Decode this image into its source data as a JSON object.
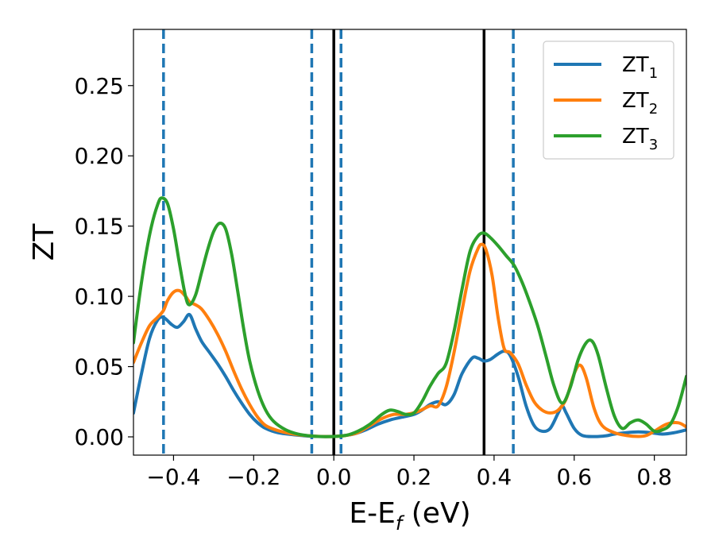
{
  "chart_data": {
    "type": "line",
    "xlabel": {
      "main": "E-E",
      "sub": "f",
      "unit": " (eV)"
    },
    "ylabel": "ZT",
    "xlim": [
      -0.5,
      0.88
    ],
    "ylim": [
      -0.013,
      0.29
    ],
    "xticks": [
      {
        "value": -0.4,
        "label": "−0.4"
      },
      {
        "value": -0.2,
        "label": "−0.2"
      },
      {
        "value": 0.0,
        "label": "0.0"
      },
      {
        "value": 0.2,
        "label": "0.2"
      },
      {
        "value": 0.4,
        "label": "0.4"
      },
      {
        "value": 0.6,
        "label": "0.6"
      },
      {
        "value": 0.8,
        "label": "0.8"
      }
    ],
    "yticks": [
      {
        "value": 0.0,
        "label": "0.00"
      },
      {
        "value": 0.05,
        "label": "0.05"
      },
      {
        "value": 0.1,
        "label": "0.10"
      },
      {
        "value": 0.15,
        "label": "0.15"
      },
      {
        "value": 0.2,
        "label": "0.20"
      },
      {
        "value": 0.25,
        "label": "0.25"
      }
    ],
    "grid": false,
    "legend_position": "top-right",
    "vlines_solid": [
      0.0,
      0.375
    ],
    "vlines_dashed": [
      -0.425,
      -0.055,
      0.018,
      0.448
    ],
    "series": [
      {
        "name": "ZT",
        "sub": "1",
        "color": "#1f77b4",
        "points": [
          [
            -0.5,
            0.017
          ],
          [
            -0.48,
            0.045
          ],
          [
            -0.46,
            0.07
          ],
          [
            -0.44,
            0.083
          ],
          [
            -0.425,
            0.085
          ],
          [
            -0.405,
            0.08
          ],
          [
            -0.39,
            0.078
          ],
          [
            -0.375,
            0.082
          ],
          [
            -0.36,
            0.087
          ],
          [
            -0.345,
            0.077
          ],
          [
            -0.33,
            0.068
          ],
          [
            -0.31,
            0.06
          ],
          [
            -0.29,
            0.052
          ],
          [
            -0.27,
            0.043
          ],
          [
            -0.25,
            0.033
          ],
          [
            -0.23,
            0.024
          ],
          [
            -0.21,
            0.016
          ],
          [
            -0.19,
            0.01
          ],
          [
            -0.17,
            0.006
          ],
          [
            -0.14,
            0.003
          ],
          [
            -0.1,
            0.0015
          ],
          [
            -0.06,
            0.0005
          ],
          [
            -0.02,
            0.0002
          ],
          [
            0.0,
            0.0003
          ],
          [
            0.02,
            0.0008
          ],
          [
            0.05,
            0.002
          ],
          [
            0.08,
            0.005
          ],
          [
            0.11,
            0.009
          ],
          [
            0.14,
            0.012
          ],
          [
            0.17,
            0.014
          ],
          [
            0.2,
            0.016
          ],
          [
            0.22,
            0.019
          ],
          [
            0.24,
            0.023
          ],
          [
            0.26,
            0.025
          ],
          [
            0.28,
            0.023
          ],
          [
            0.3,
            0.03
          ],
          [
            0.32,
            0.045
          ],
          [
            0.345,
            0.056
          ],
          [
            0.36,
            0.056
          ],
          [
            0.375,
            0.054
          ],
          [
            0.39,
            0.055
          ],
          [
            0.41,
            0.059
          ],
          [
            0.425,
            0.061
          ],
          [
            0.44,
            0.058
          ],
          [
            0.46,
            0.043
          ],
          [
            0.48,
            0.022
          ],
          [
            0.5,
            0.008
          ],
          [
            0.52,
            0.004
          ],
          [
            0.54,
            0.006
          ],
          [
            0.56,
            0.017
          ],
          [
            0.57,
            0.022
          ],
          [
            0.58,
            0.017
          ],
          [
            0.6,
            0.006
          ],
          [
            0.62,
            0.001
          ],
          [
            0.65,
            0.0002
          ],
          [
            0.68,
            0.0008
          ],
          [
            0.7,
            0.002
          ],
          [
            0.73,
            0.003
          ],
          [
            0.76,
            0.0035
          ],
          [
            0.79,
            0.003
          ],
          [
            0.82,
            0.002
          ],
          [
            0.85,
            0.003
          ],
          [
            0.88,
            0.005
          ]
        ]
      },
      {
        "name": "ZT",
        "sub": "2",
        "color": "#ff7f0e",
        "points": [
          [
            -0.5,
            0.053
          ],
          [
            -0.48,
            0.067
          ],
          [
            -0.46,
            0.079
          ],
          [
            -0.44,
            0.085
          ],
          [
            -0.425,
            0.09
          ],
          [
            -0.415,
            0.097
          ],
          [
            -0.4,
            0.103
          ],
          [
            -0.385,
            0.104
          ],
          [
            -0.37,
            0.1
          ],
          [
            -0.36,
            0.096
          ],
          [
            -0.345,
            0.094
          ],
          [
            -0.33,
            0.091
          ],
          [
            -0.31,
            0.083
          ],
          [
            -0.29,
            0.073
          ],
          [
            -0.27,
            0.061
          ],
          [
            -0.25,
            0.047
          ],
          [
            -0.23,
            0.034
          ],
          [
            -0.21,
            0.023
          ],
          [
            -0.19,
            0.014
          ],
          [
            -0.17,
            0.008
          ],
          [
            -0.14,
            0.0045
          ],
          [
            -0.1,
            0.002
          ],
          [
            -0.06,
            0.0007
          ],
          [
            -0.02,
            0.0002
          ],
          [
            0.0,
            0.0003
          ],
          [
            0.03,
            0.001
          ],
          [
            0.06,
            0.003
          ],
          [
            0.09,
            0.008
          ],
          [
            0.12,
            0.013
          ],
          [
            0.15,
            0.016
          ],
          [
            0.18,
            0.016
          ],
          [
            0.21,
            0.018
          ],
          [
            0.24,
            0.022
          ],
          [
            0.26,
            0.022
          ],
          [
            0.28,
            0.035
          ],
          [
            0.3,
            0.06
          ],
          [
            0.32,
            0.09
          ],
          [
            0.34,
            0.118
          ],
          [
            0.36,
            0.134
          ],
          [
            0.37,
            0.137
          ],
          [
            0.38,
            0.133
          ],
          [
            0.395,
            0.115
          ],
          [
            0.41,
            0.085
          ],
          [
            0.425,
            0.063
          ],
          [
            0.44,
            0.06
          ],
          [
            0.46,
            0.052
          ],
          [
            0.48,
            0.037
          ],
          [
            0.5,
            0.025
          ],
          [
            0.52,
            0.019
          ],
          [
            0.54,
            0.017
          ],
          [
            0.56,
            0.019
          ],
          [
            0.58,
            0.027
          ],
          [
            0.6,
            0.045
          ],
          [
            0.615,
            0.051
          ],
          [
            0.63,
            0.042
          ],
          [
            0.65,
            0.02
          ],
          [
            0.67,
            0.008
          ],
          [
            0.7,
            0.003
          ],
          [
            0.73,
            0.001
          ],
          [
            0.76,
            0.0003
          ],
          [
            0.78,
            0.001
          ],
          [
            0.8,
            0.004
          ],
          [
            0.83,
            0.009
          ],
          [
            0.86,
            0.01
          ],
          [
            0.88,
            0.007
          ]
        ]
      },
      {
        "name": "ZT",
        "sub": "3",
        "color": "#2ca02c",
        "points": [
          [
            -0.5,
            0.067
          ],
          [
            -0.485,
            0.1
          ],
          [
            -0.47,
            0.128
          ],
          [
            -0.455,
            0.15
          ],
          [
            -0.44,
            0.165
          ],
          [
            -0.43,
            0.17
          ],
          [
            -0.415,
            0.166
          ],
          [
            -0.4,
            0.148
          ],
          [
            -0.385,
            0.123
          ],
          [
            -0.37,
            0.1
          ],
          [
            -0.36,
            0.094
          ],
          [
            -0.345,
            0.101
          ],
          [
            -0.33,
            0.117
          ],
          [
            -0.315,
            0.133
          ],
          [
            -0.3,
            0.146
          ],
          [
            -0.285,
            0.152
          ],
          [
            -0.27,
            0.148
          ],
          [
            -0.255,
            0.13
          ],
          [
            -0.24,
            0.104
          ],
          [
            -0.225,
            0.077
          ],
          [
            -0.21,
            0.054
          ],
          [
            -0.19,
            0.033
          ],
          [
            -0.17,
            0.019
          ],
          [
            -0.15,
            0.011
          ],
          [
            -0.12,
            0.005
          ],
          [
            -0.09,
            0.002
          ],
          [
            -0.06,
            0.0007
          ],
          [
            -0.03,
            0.0002
          ],
          [
            0.0,
            0.0003
          ],
          [
            0.03,
            0.001
          ],
          [
            0.06,
            0.004
          ],
          [
            0.09,
            0.009
          ],
          [
            0.12,
            0.016
          ],
          [
            0.14,
            0.019
          ],
          [
            0.16,
            0.018
          ],
          [
            0.18,
            0.016
          ],
          [
            0.2,
            0.017
          ],
          [
            0.22,
            0.025
          ],
          [
            0.24,
            0.036
          ],
          [
            0.26,
            0.045
          ],
          [
            0.28,
            0.052
          ],
          [
            0.3,
            0.075
          ],
          [
            0.32,
            0.105
          ],
          [
            0.34,
            0.132
          ],
          [
            0.36,
            0.143
          ],
          [
            0.375,
            0.145
          ],
          [
            0.39,
            0.142
          ],
          [
            0.41,
            0.136
          ],
          [
            0.43,
            0.129
          ],
          [
            0.45,
            0.122
          ],
          [
            0.47,
            0.11
          ],
          [
            0.49,
            0.095
          ],
          [
            0.51,
            0.078
          ],
          [
            0.53,
            0.057
          ],
          [
            0.55,
            0.036
          ],
          [
            0.57,
            0.024
          ],
          [
            0.59,
            0.035
          ],
          [
            0.61,
            0.055
          ],
          [
            0.63,
            0.067
          ],
          [
            0.645,
            0.068
          ],
          [
            0.66,
            0.058
          ],
          [
            0.68,
            0.035
          ],
          [
            0.7,
            0.015
          ],
          [
            0.72,
            0.006
          ],
          [
            0.74,
            0.01
          ],
          [
            0.76,
            0.012
          ],
          [
            0.78,
            0.009
          ],
          [
            0.8,
            0.004
          ],
          [
            0.82,
            0.005
          ],
          [
            0.84,
            0.009
          ],
          [
            0.86,
            0.022
          ],
          [
            0.88,
            0.043
          ]
        ]
      }
    ]
  }
}
